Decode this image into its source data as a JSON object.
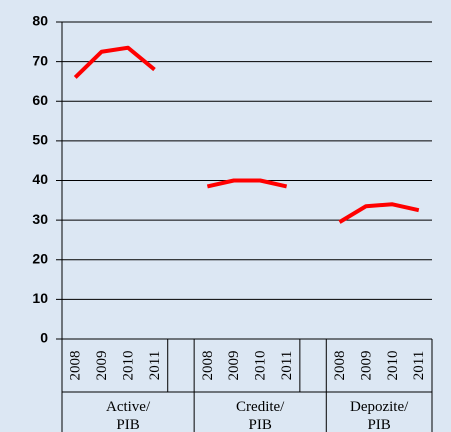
{
  "chart_data": {
    "type": "line",
    "categories": [
      "2008",
      "2009",
      "2010",
      "2011"
    ],
    "series": [
      {
        "name": "Active/ PIB",
        "color": "#ff0000",
        "values": [
          66,
          72.5,
          73.5,
          68
        ]
      },
      {
        "name": "Credite/ PIB",
        "color": "#ff0000",
        "values": [
          38.5,
          40,
          40,
          38.5
        ]
      },
      {
        "name": "Depozite/ PIB",
        "color": "#ff0000",
        "values": [
          29.5,
          33.5,
          34,
          32.5
        ]
      }
    ],
    "ylim": [
      0,
      80
    ],
    "yticks": [
      0,
      10,
      20,
      30,
      40,
      50,
      60,
      70,
      80
    ],
    "grid": true
  }
}
